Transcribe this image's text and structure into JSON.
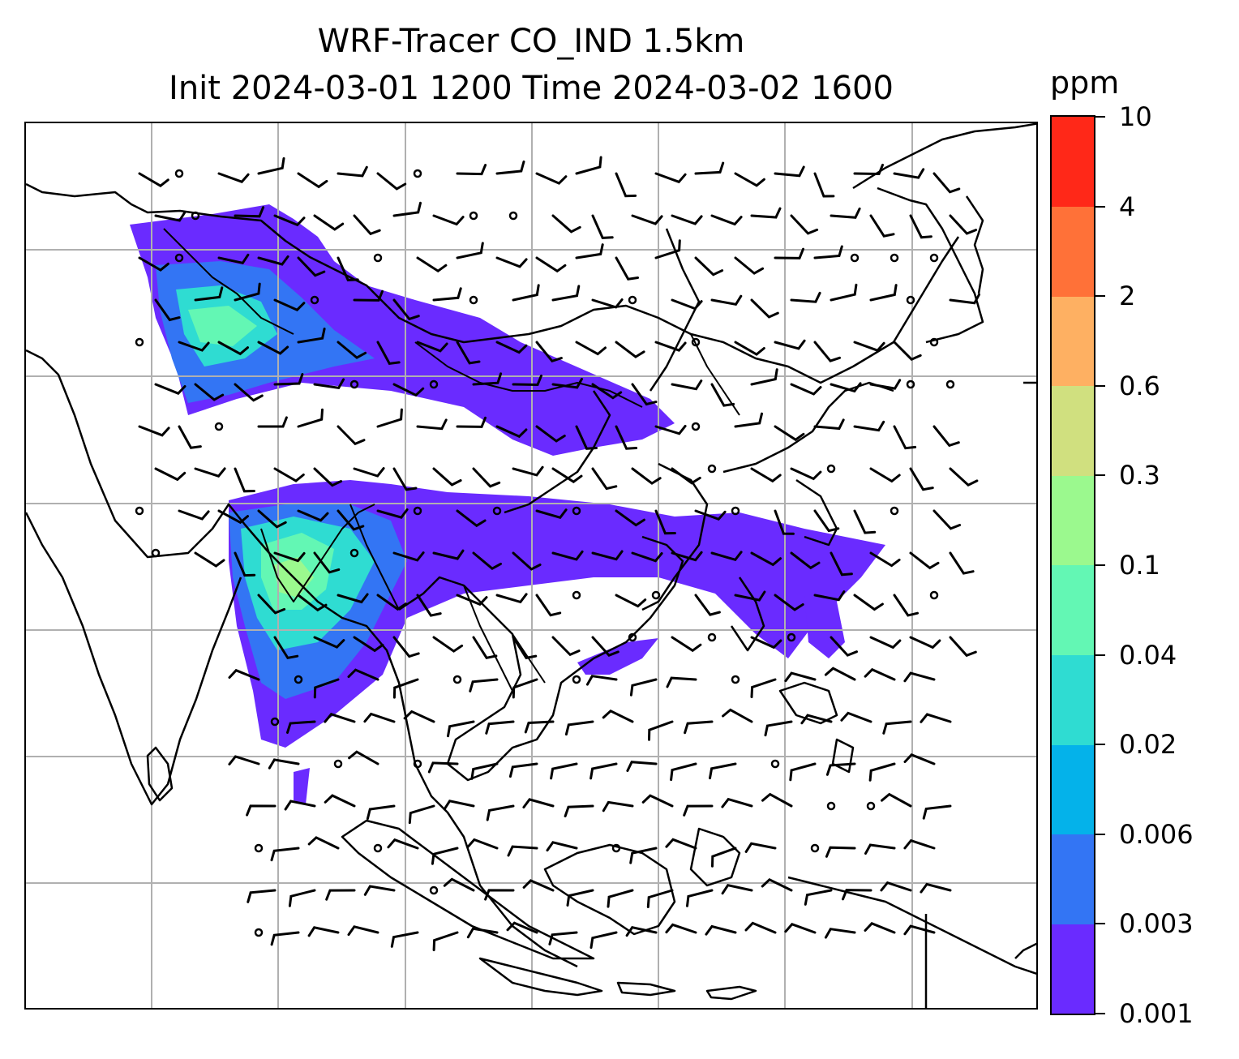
{
  "title": {
    "line1": "WRF-Tracer CO_IND 1.5km",
    "line2": "Init 2024-03-01 1200 Time 2024-03-02 1600"
  },
  "colorbar": {
    "unit": "ppm",
    "tick_labels": [
      "0.001",
      "0.003",
      "0.006",
      "0.02",
      "0.04",
      "0.1",
      "0.3",
      "0.6",
      "2",
      "4",
      "10"
    ],
    "colors": [
      "#6a2bff",
      "#3375f4",
      "#04b2ea",
      "#2fdcd2",
      "#63f7b4",
      "#9bf98e",
      "#d0e07f",
      "#feb062",
      "#ff7138",
      "#ff2818"
    ]
  },
  "map": {
    "features": [
      "coastlines",
      "country-borders",
      "gridlines",
      "wind-barbs",
      "calm-wind-circles",
      "co-tracer-shading"
    ],
    "gridline_color": "#b0b0b0",
    "line_color": "#000000"
  }
}
